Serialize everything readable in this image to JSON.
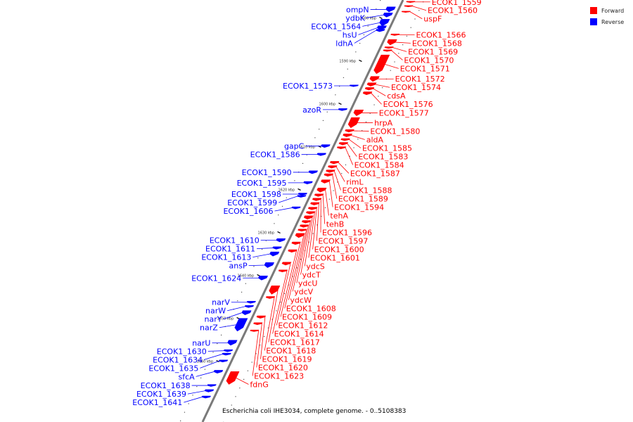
{
  "caption": "Escherichia coli IHE3034, complete genome. - 0..5108383",
  "legend": [
    {
      "label": "Forward",
      "color": "#ff0000"
    },
    {
      "label": "Reverse",
      "color": "#0000ff"
    }
  ],
  "colors": {
    "forward": "#ff0000",
    "reverse": "#0000ff",
    "backbone": "#7a7a7a",
    "label_line": "#3333ff"
  },
  "ticks": [
    "1580 kbp",
    "1590 kbp",
    "1600 kbp",
    "1610 kbp",
    "1620 kbp",
    "1630 kbp",
    "1640 kbp",
    "1650 kbp",
    "1660 kbp"
  ],
  "genes": [
    {
      "name": "ompN",
      "strand": "reverse",
      "kbp": 1577.6,
      "len": 1.2
    },
    {
      "name": "ydbK",
      "strand": "reverse",
      "kbp": 1579.0,
      "len": 1.0
    },
    {
      "name": "ECOK1_1564",
      "strand": "reverse",
      "kbp": 1580.5,
      "len": 1.6
    },
    {
      "name": "hsU",
      "strand": "reverse",
      "kbp": 1582.0,
      "len": 1.0
    },
    {
      "name": "ldhA",
      "strand": "reverse",
      "kbp": 1582.8,
      "len": 0.6
    },
    {
      "name": "ECOK1_1559",
      "strand": "forward",
      "kbp": 1576.3,
      "len": 0.3
    },
    {
      "name": "ECOK1_1560",
      "strand": "forward",
      "kbp": 1577.3,
      "len": 0.3
    },
    {
      "name": "uspF",
      "strand": "forward",
      "kbp": 1578.6,
      "len": 0.3
    },
    {
      "name": "ECOK1_1566",
      "strand": "forward",
      "kbp": 1583.9,
      "len": 0.4
    },
    {
      "name": "ECOK1_1568",
      "strand": "forward",
      "kbp": 1585.2,
      "len": 1.3
    },
    {
      "name": "ECOK1_1569",
      "strand": "forward",
      "kbp": 1586.9,
      "len": 0.4
    },
    {
      "name": "ECOK1_1570",
      "strand": "forward",
      "kbp": 1587.6,
      "len": 0.4
    },
    {
      "name": "ECOK1_1571",
      "strand": "forward",
      "kbp": 1588.8,
      "len": 4.4
    },
    {
      "name": "ECOK1_1573",
      "strand": "reverse",
      "kbp": 1595.8,
      "len": 0.4
    },
    {
      "name": "ECOK1_1572",
      "strand": "forward",
      "kbp": 1593.8,
      "len": 1.2
    },
    {
      "name": "ECOK1_1574",
      "strand": "forward",
      "kbp": 1595.3,
      "len": 0.8
    },
    {
      "name": "cdsA",
      "strand": "forward",
      "kbp": 1596.4,
      "len": 0.6
    },
    {
      "name": "ECOK1_1576",
      "strand": "forward",
      "kbp": 1597.4,
      "len": 0.7
    },
    {
      "name": "azoR",
      "strand": "reverse",
      "kbp": 1601.3,
      "len": 0.5
    },
    {
      "name": "ECOK1_1577",
      "strand": "forward",
      "kbp": 1601.6,
      "len": 1.4
    },
    {
      "name": "hrpA",
      "strand": "forward",
      "kbp": 1603.4,
      "len": 2.4
    },
    {
      "name": "gapC",
      "strand": "reverse",
      "kbp": 1609.7,
      "len": 0.7
    },
    {
      "name": "ECOK1_1586",
      "strand": "reverse",
      "kbp": 1611.7,
      "len": 0.6
    },
    {
      "name": "ECOK1_1580",
      "strand": "forward",
      "kbp": 1606.2,
      "len": 0.6
    },
    {
      "name": "aldA",
      "strand": "forward",
      "kbp": 1607.2,
      "len": 0.7
    },
    {
      "name": "ECOK1_1585",
      "strand": "forward",
      "kbp": 1608.3,
      "len": 0.5
    },
    {
      "name": "ECOK1_1583",
      "strand": "forward",
      "kbp": 1609.2,
      "len": 0.6
    },
    {
      "name": "ECOK1_1584",
      "strand": "forward",
      "kbp": 1610.2,
      "len": 0.5
    },
    {
      "name": "ECOK1_1590",
      "strand": "reverse",
      "kbp": 1615.8,
      "len": 0.7
    },
    {
      "name": "ECOK1_1595",
      "strand": "reverse",
      "kbp": 1618.3,
      "len": 0.6
    },
    {
      "name": "ECOK1_1598",
      "strand": "reverse",
      "kbp": 1621.0,
      "len": 0.5
    },
    {
      "name": "ECOK1_1599",
      "strand": "reverse",
      "kbp": 1621.5,
      "len": 0.5
    },
    {
      "name": "ECOK1_1606",
      "strand": "reverse",
      "kbp": 1624.2,
      "len": 0.5
    },
    {
      "name": "ECOK1_1587",
      "strand": "forward",
      "kbp": 1613.6,
      "len": 0.6
    },
    {
      "name": "rimL",
      "strand": "forward",
      "kbp": 1614.6,
      "len": 0.6
    },
    {
      "name": "ECOK1_1588",
      "strand": "forward",
      "kbp": 1615.6,
      "len": 0.6
    },
    {
      "name": "ECOK1_1589",
      "strand": "forward",
      "kbp": 1616.5,
      "len": 0.6
    },
    {
      "name": "ECOK1_1594",
      "strand": "forward",
      "kbp": 1617.9,
      "len": 0.8
    },
    {
      "name": "tehA",
      "strand": "forward",
      "kbp": 1619.8,
      "len": 1.0
    },
    {
      "name": "tehB",
      "strand": "forward",
      "kbp": 1621.2,
      "len": 0.6
    },
    {
      "name": "ECOK1_1596",
      "strand": "forward",
      "kbp": 1622.2,
      "len": 0.6
    },
    {
      "name": "ECOK1_1597",
      "strand": "forward",
      "kbp": 1623.2,
      "len": 0.6
    },
    {
      "name": "ECOK1_1600",
      "strand": "forward",
      "kbp": 1624.3,
      "len": 0.6
    },
    {
      "name": "ECOK1_1601",
      "strand": "forward",
      "kbp": 1625.3,
      "len": 0.6
    },
    {
      "name": "ydcS",
      "strand": "forward",
      "kbp": 1626.3,
      "len": 0.8
    },
    {
      "name": "ydcT",
      "strand": "forward",
      "kbp": 1627.4,
      "len": 0.6
    },
    {
      "name": "ydcU",
      "strand": "forward",
      "kbp": 1628.4,
      "len": 0.6
    },
    {
      "name": "ydcV",
      "strand": "forward",
      "kbp": 1629.4,
      "len": 0.5
    },
    {
      "name": "ydcW",
      "strand": "forward",
      "kbp": 1630.4,
      "len": 1.0
    },
    {
      "name": "ECOK1_1608",
      "strand": "forward",
      "kbp": 1632.4,
      "len": 0.6
    },
    {
      "name": "ECOK1_1609",
      "strand": "forward",
      "kbp": 1634.2,
      "len": 0.6
    },
    {
      "name": "ECOK1_1610",
      "strand": "reverse",
      "kbp": 1631.6,
      "len": 0.8
    },
    {
      "name": "ECOK1_1611",
      "strand": "reverse",
      "kbp": 1633.5,
      "len": 0.6
    },
    {
      "name": "ECOK1_1613",
      "strand": "reverse",
      "kbp": 1634.7,
      "len": 1.0
    },
    {
      "name": "ansP",
      "strand": "reverse",
      "kbp": 1637.2,
      "len": 1.2
    },
    {
      "name": "ECOK1_1624",
      "strand": "reverse",
      "kbp": 1640.3,
      "len": 1.0
    },
    {
      "name": "narV",
      "strand": "reverse",
      "kbp": 1646.2,
      "len": 0.5
    },
    {
      "name": "narW",
      "strand": "reverse",
      "kbp": 1647.2,
      "len": 0.5
    },
    {
      "name": "narY",
      "strand": "reverse",
      "kbp": 1648.4,
      "len": 1.0
    },
    {
      "name": "narZ",
      "strand": "reverse",
      "kbp": 1650.2,
      "len": 3.0
    },
    {
      "name": "narU",
      "strand": "reverse",
      "kbp": 1655.3,
      "len": 1.2
    },
    {
      "name": "ECOK1_1612",
      "strand": "forward",
      "kbp": 1637.1,
      "len": 0.7
    },
    {
      "name": "ECOK1_1614",
      "strand": "forward",
      "kbp": 1638.9,
      "len": 0.5
    },
    {
      "name": "ECOK1_1617",
      "strand": "forward",
      "kbp": 1642.6,
      "len": 2.0
    },
    {
      "name": "ECOK1_1618",
      "strand": "forward",
      "kbp": 1645.1,
      "len": 0.5
    },
    {
      "name": "ECOK1_1619",
      "strand": "forward",
      "kbp": 1649.6,
      "len": 0.6
    },
    {
      "name": "ECOK1_1620",
      "strand": "forward",
      "kbp": 1651.2,
      "len": 0.5
    },
    {
      "name": "ECOK1_1623",
      "strand": "forward",
      "kbp": 1652.9,
      "len": 0.4
    },
    {
      "name": "ECOK1_1630",
      "strand": "reverse",
      "kbp": 1657.5,
      "len": 0.5
    },
    {
      "name": "ECOK1_1634",
      "strand": "reverse",
      "kbp": 1658.3,
      "len": 0.5
    },
    {
      "name": "ECOK1_1635",
      "strand": "reverse",
      "kbp": 1659.9,
      "len": 0.5
    },
    {
      "name": "sfcA",
      "strand": "reverse",
      "kbp": 1662.3,
      "len": 0.7
    },
    {
      "name": "ECOK1_1638",
      "strand": "reverse",
      "kbp": 1665.6,
      "len": 0.5
    },
    {
      "name": "ECOK1_1639",
      "strand": "reverse",
      "kbp": 1666.8,
      "len": 0.6
    },
    {
      "name": "ECOK1_1641",
      "strand": "reverse",
      "kbp": 1668.3,
      "len": 0.5
    },
    {
      "name": "fdnG",
      "strand": "forward",
      "kbp": 1662.6,
      "len": 3.0
    }
  ]
}
